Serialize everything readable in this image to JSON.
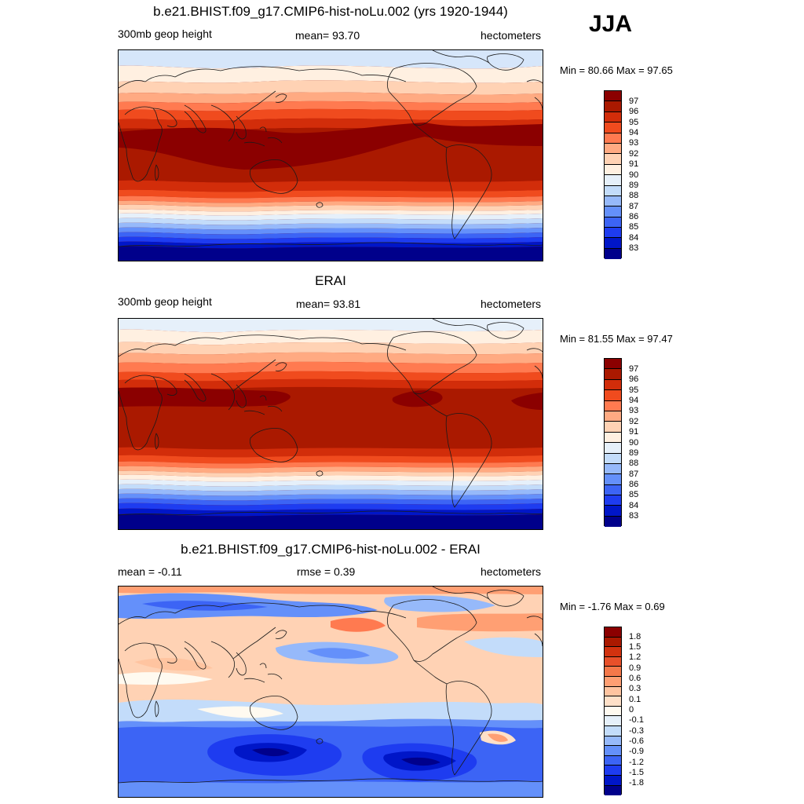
{
  "season": "JJA",
  "colors": {
    "abs_scale": [
      "#00008b",
      "#0016c8",
      "#1e3cf0",
      "#3c64f5",
      "#6490fa",
      "#96b9fa",
      "#c3dcfa",
      "#e6f0fa",
      "#fff0e1",
      "#ffd2b4",
      "#ffaa82",
      "#ff7a50",
      "#f04b1e",
      "#d22d0a",
      "#aa1900",
      "#8b0000"
    ],
    "diff_scale": [
      "#00008b",
      "#0016c8",
      "#1e3cf0",
      "#3c64f5",
      "#6490fa",
      "#96b9fa",
      "#c3dcfa",
      "#e6f0fa",
      "#fffaf0",
      "#ffe0c8",
      "#ffc4a0",
      "#ff9f73",
      "#f5784a",
      "#e8502a",
      "#d2320f",
      "#aa1900",
      "#8b0000"
    ]
  },
  "panels": [
    {
      "title": "b.e21.BHIST.f09_g17.CMIP6-hist-noLu.002 (yrs 1920-1944)",
      "left_label": "300mb geop height",
      "center_label": "mean=  93.70",
      "units": "hectometers",
      "minmax": "Min =  80.66 Max =  97.65",
      "ticks": [
        "97",
        "96",
        "95",
        "94",
        "93",
        "92",
        "91",
        "90",
        "89",
        "88",
        "87",
        "86",
        "85",
        "84",
        "83"
      ]
    },
    {
      "title": "ERAI",
      "left_label": "300mb geop height",
      "center_label": "mean=  93.81",
      "units": "hectometers",
      "minmax": "Min =  81.55 Max =  97.47",
      "ticks": [
        "97",
        "96",
        "95",
        "94",
        "93",
        "92",
        "91",
        "90",
        "89",
        "88",
        "87",
        "86",
        "85",
        "84",
        "83"
      ]
    },
    {
      "title": "b.e21.BHIST.f09_g17.CMIP6-hist-noLu.002 - ERAI",
      "left_label": "mean =  -0.11",
      "center_label": "rmse =   0.39",
      "units": "hectometers",
      "minmax": "Min =  -1.76 Max =   0.69",
      "ticks": [
        "1.8",
        "1.5",
        "1.2",
        "0.9",
        "0.6",
        "0.3",
        "0.1",
        "0",
        "-0.1",
        "-0.3",
        "-0.6",
        "-0.9",
        "-1.2",
        "-1.5",
        "-1.8"
      ]
    }
  ]
}
